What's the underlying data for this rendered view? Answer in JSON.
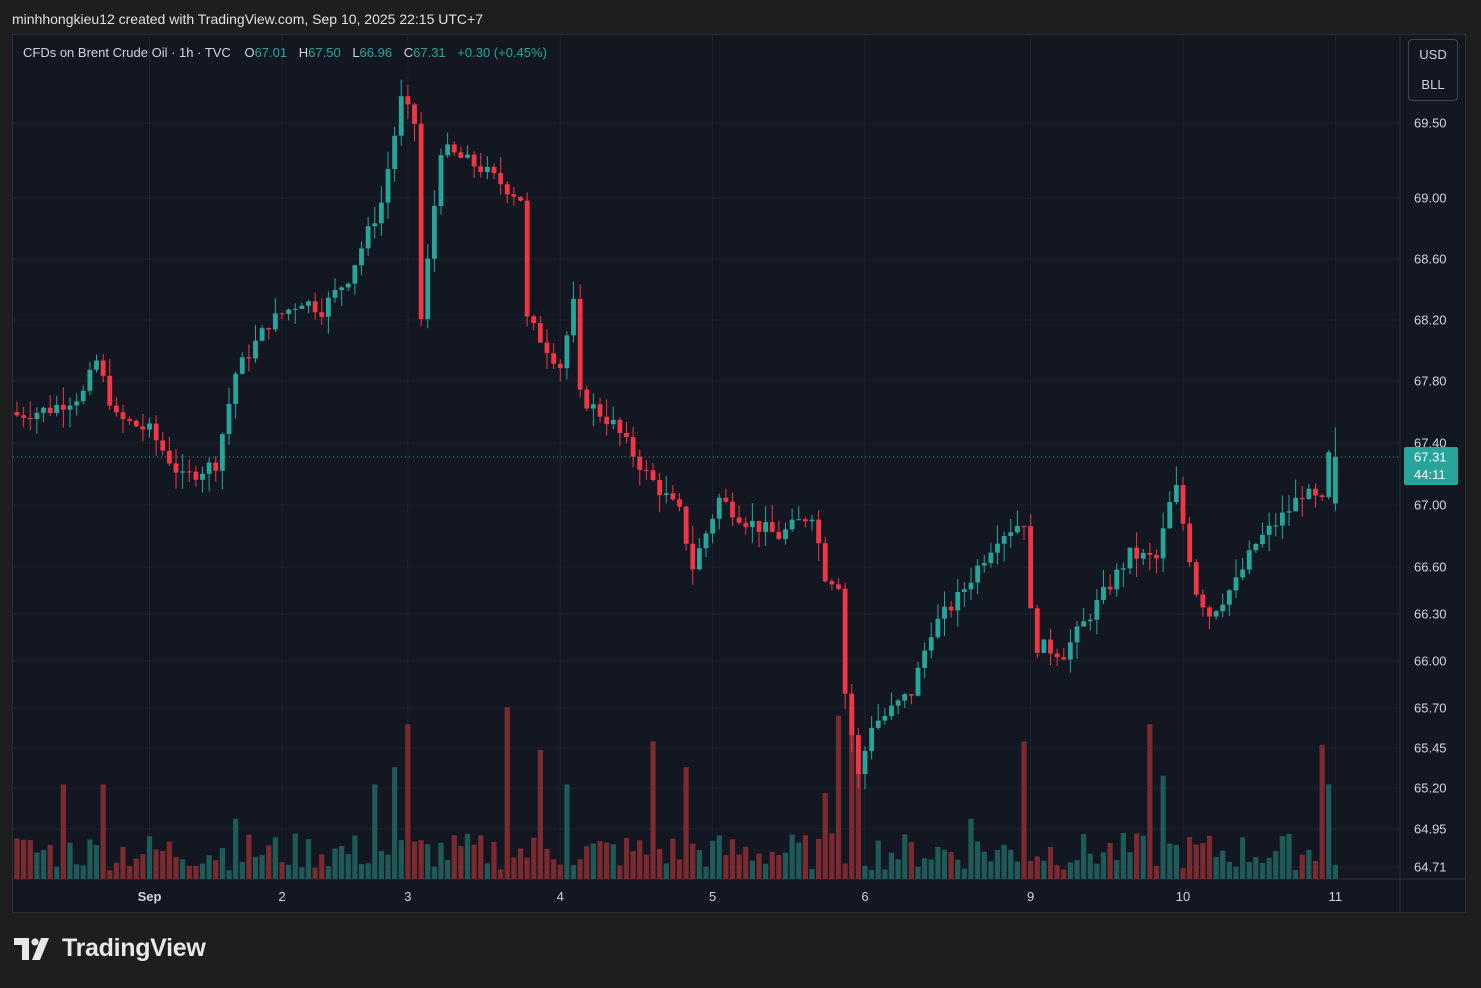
{
  "header": {
    "attribution": "minhhongkieu12 created with TradingView.com, Sep 10, 2025 22:15 UTC+7"
  },
  "legend": {
    "symbol": "CFDs on Brent Crude Oil · 1h · TVC",
    "open_label": "O",
    "open": "67.01",
    "high_label": "H",
    "high": "67.50",
    "low_label": "L",
    "low": "66.96",
    "close_label": "C",
    "close": "67.31",
    "change": "+0.30 (+0.45%)"
  },
  "unit_box": {
    "currency": "USD",
    "unit": "BLL"
  },
  "price_tag": {
    "price": "67.31",
    "countdown": "44:11"
  },
  "footer": {
    "brand": "TradingView"
  },
  "colors": {
    "up": "#26a69a",
    "down": "#f23645",
    "up_vol": "#1e5b58",
    "down_vol": "#7b2a30",
    "background": "#131722",
    "grid": "#1e222d"
  },
  "chart_data": {
    "type": "candlestick",
    "interval": "1h",
    "current_price": 67.31,
    "y_ticks": [
      64.71,
      64.95,
      65.2,
      65.45,
      65.7,
      66.0,
      66.3,
      66.6,
      67.0,
      67.4,
      67.8,
      68.2,
      68.6,
      69.0,
      69.5
    ],
    "y_tick_labels": [
      "64.71",
      "64.95",
      "65.20",
      "65.45",
      "65.70",
      "66.00",
      "66.30",
      "66.60",
      "67.00",
      "67.40",
      "67.80",
      "68.20",
      "68.60",
      "69.00",
      "69.50"
    ],
    "x_labels": [
      {
        "label": "Sep",
        "bar": 20
      },
      {
        "label": "2",
        "bar": 40
      },
      {
        "label": "3",
        "bar": 59
      },
      {
        "label": "4",
        "bar": 82
      },
      {
        "label": "5",
        "bar": 105
      },
      {
        "label": "6",
        "bar": 128
      },
      {
        "label": "9",
        "bar": 153
      },
      {
        "label": "10",
        "bar": 176
      },
      {
        "label": "11",
        "bar": 199
      }
    ],
    "key_closes": [
      [
        0,
        67.58
      ],
      [
        5,
        67.62
      ],
      [
        10,
        67.72
      ],
      [
        12,
        67.93
      ],
      [
        15,
        67.56
      ],
      [
        20,
        67.48
      ],
      [
        25,
        67.17
      ],
      [
        30,
        67.27
      ],
      [
        33,
        67.85
      ],
      [
        38,
        68.18
      ],
      [
        43,
        68.33
      ],
      [
        46,
        68.27
      ],
      [
        50,
        68.48
      ],
      [
        55,
        68.97
      ],
      [
        58,
        69.65
      ],
      [
        60,
        69.5
      ],
      [
        61,
        68.2
      ],
      [
        64,
        69.33
      ],
      [
        70,
        69.2
      ],
      [
        76,
        69.0
      ],
      [
        77,
        68.2
      ],
      [
        82,
        67.9
      ],
      [
        84,
        68.3
      ],
      [
        85,
        67.7
      ],
      [
        90,
        67.52
      ],
      [
        95,
        67.2
      ],
      [
        100,
        66.95
      ],
      [
        102,
        66.6
      ],
      [
        106,
        67.04
      ],
      [
        110,
        66.9
      ],
      [
        115,
        66.8
      ],
      [
        120,
        66.95
      ],
      [
        122,
        66.55
      ],
      [
        124,
        66.5
      ],
      [
        125,
        65.8
      ],
      [
        127,
        65.27
      ],
      [
        129,
        65.6
      ],
      [
        131,
        65.65
      ],
      [
        135,
        65.8
      ],
      [
        138,
        66.2
      ],
      [
        142,
        66.4
      ],
      [
        148,
        66.8
      ],
      [
        152,
        66.9
      ],
      [
        153,
        66.3
      ],
      [
        154,
        66.1
      ],
      [
        158,
        66.05
      ],
      [
        162,
        66.3
      ],
      [
        168,
        66.68
      ],
      [
        172,
        66.65
      ],
      [
        174,
        67.0
      ],
      [
        175,
        67.1
      ],
      [
        178,
        66.45
      ],
      [
        180,
        66.3
      ],
      [
        184,
        66.5
      ],
      [
        187,
        66.75
      ],
      [
        192,
        66.97
      ],
      [
        194,
        67.08
      ],
      [
        197,
        67.01
      ],
      [
        198,
        67.31
      ]
    ],
    "volume_ylim": [
      0,
      100
    ]
  }
}
